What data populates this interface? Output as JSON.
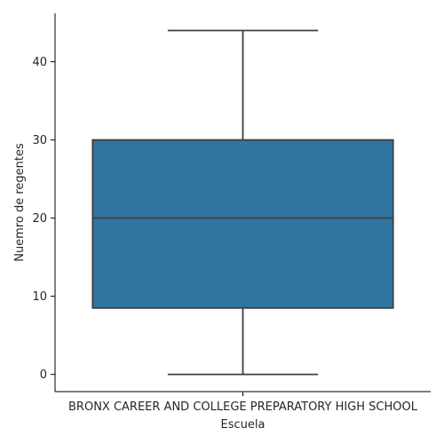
{
  "chart_data": {
    "type": "box",
    "xlabel": "Escuela",
    "ylabel": "Nuemro de regentes",
    "categories": [
      "BRONX CAREER AND COLLEGE PREPARATORY HIGH SCHOOL"
    ],
    "boxes": [
      {
        "category": "BRONX CAREER AND COLLEGE PREPARATORY HIGH SCHOOL",
        "whisker_low": 0,
        "q1": 8.5,
        "median": 20,
        "q3": 30,
        "whisker_high": 44
      }
    ],
    "ylim": [
      -2.2,
      46.2
    ],
    "yticks": [
      0,
      10,
      20,
      30,
      40
    ],
    "box_color": "#3274a1",
    "line_color": "#3f3f3f",
    "grid": false,
    "legend": "none"
  }
}
